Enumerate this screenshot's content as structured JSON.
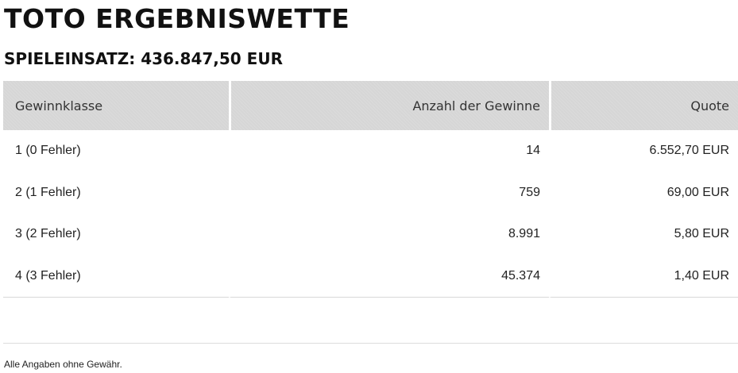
{
  "header": {
    "title": "TOTO ERGEBNISWETTE",
    "stake": "SPIELEINSATZ: 436.847,50 EUR"
  },
  "table": {
    "columns": [
      "Gewinnklasse",
      "Anzahl der Gewinne",
      "Quote"
    ],
    "rows": [
      {
        "klasse": "1 (0 Fehler)",
        "anzahl": "14",
        "quote": "6.552,70 EUR"
      },
      {
        "klasse": "2 (1 Fehler)",
        "anzahl": "759",
        "quote": "69,00 EUR"
      },
      {
        "klasse": "3 (2 Fehler)",
        "anzahl": "8.991",
        "quote": "5,80 EUR"
      },
      {
        "klasse": "4 (3 Fehler)",
        "anzahl": "45.374",
        "quote": "1,40 EUR"
      }
    ]
  },
  "footer": {
    "disclaimer": "Alle Angaben ohne Gewähr."
  }
}
